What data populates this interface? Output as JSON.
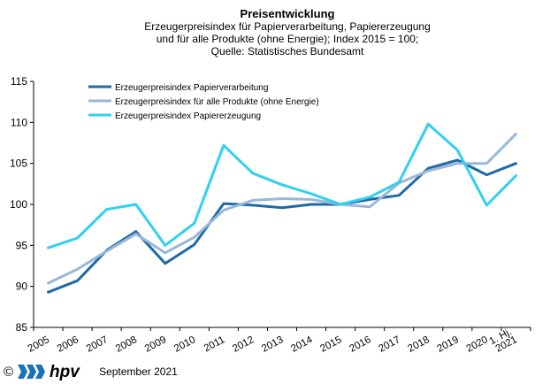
{
  "header": {
    "title": "Preisentwicklung",
    "line1": "Erzeugerpreisindex  für Papierverarbeitung,  Papiererzeugung",
    "line2": "und für alle Produkte (ohne Energie); Index 2015 = 100;",
    "line3": "Quelle: Statistisches Bundesamt"
  },
  "footer": {
    "copyright": "©",
    "logo_text": "hpv",
    "date": "September 2021",
    "logo_colors": [
      "#1a73b6",
      "#000000"
    ]
  },
  "chart_data": {
    "type": "line",
    "categories": [
      "2005",
      "2006",
      "2007",
      "2008",
      "2009",
      "2010",
      "2011",
      "2012",
      "2013",
      "2014",
      "2015",
      "2016",
      "2017",
      "2018",
      "2019",
      "2020",
      "1. Hj. 2021"
    ],
    "ylim": [
      85,
      115
    ],
    "yticks": [
      85,
      90,
      95,
      100,
      105,
      110,
      115
    ],
    "grid": false,
    "legend_position": "top-left",
    "series": [
      {
        "name": "Erzeugerpreisindex Papierverarbeitung",
        "color": "#1f6aa5",
        "values": [
          89.3,
          90.7,
          94.4,
          96.7,
          92.8,
          95.1,
          100.1,
          99.9,
          99.6,
          100.0,
          100.0,
          100.6,
          101.1,
          104.4,
          105.4,
          103.6,
          105.0
        ]
      },
      {
        "name": "Erzeugerpreisindex für alle Produkte (ohne Energie)",
        "color": "#9ab7d8",
        "values": [
          90.4,
          92.1,
          94.3,
          96.4,
          94.1,
          96.0,
          99.3,
          100.5,
          100.7,
          100.6,
          100.0,
          99.7,
          102.6,
          104.1,
          105.0,
          105.0,
          108.6
        ]
      },
      {
        "name": "Erzeugerpreisindex Papiererzeugung",
        "color": "#2fd0f0",
        "values": [
          94.7,
          95.9,
          99.4,
          100.0,
          95.0,
          97.7,
          107.2,
          103.8,
          102.4,
          101.3,
          100.0,
          100.9,
          102.7,
          109.8,
          106.6,
          99.9,
          103.5
        ]
      }
    ]
  }
}
